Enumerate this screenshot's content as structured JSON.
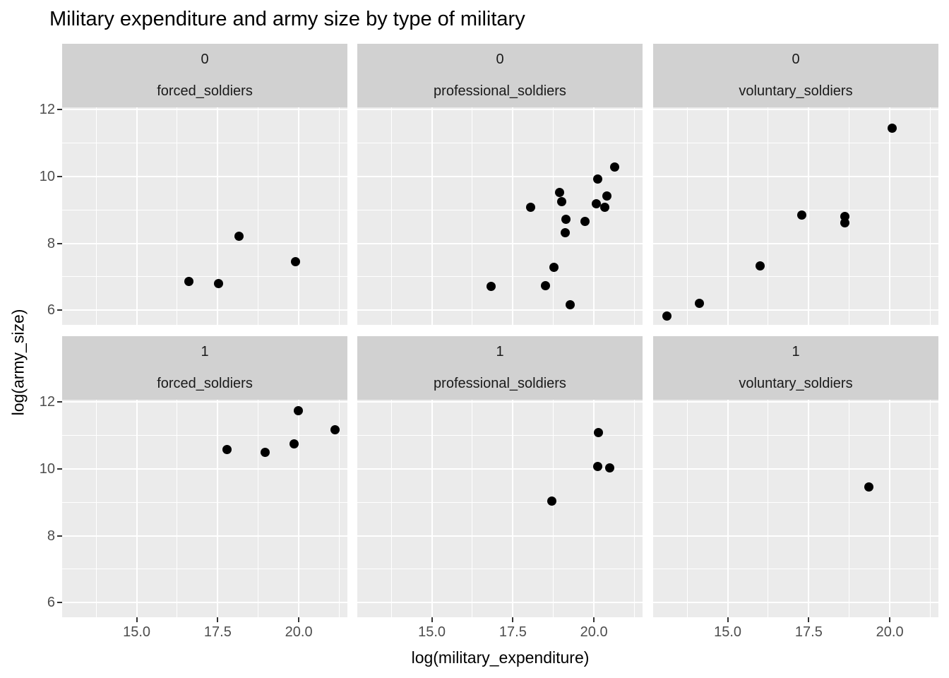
{
  "title": "Military expenditure and army size by type of military",
  "chart_data": {
    "type": "scatter",
    "title": "Military expenditure and army size by type of military",
    "xlabel": "log(military_expenditure)",
    "ylabel": "log(army_size)",
    "facet_rows": [
      "0",
      "1"
    ],
    "facet_cols": [
      "forced_soldiers",
      "professional_soldiers",
      "voluntary_soldiers"
    ],
    "xlim": [
      12.7,
      21.5
    ],
    "ylim": [
      5.56,
      12.07
    ],
    "x_ticks": [
      15.0,
      17.5,
      20.0
    ],
    "x_tick_labels": [
      "15.0",
      "17.5",
      "20.0"
    ],
    "y_ticks": [
      6,
      8,
      10,
      12
    ],
    "y_tick_labels": [
      "6",
      "8",
      "10",
      "12"
    ],
    "x_minor_ticks": [
      13.75,
      16.25,
      18.75,
      21.25
    ],
    "y_minor_ticks": [
      7,
      9,
      11
    ],
    "grid": true,
    "legend": "none",
    "panels": [
      {
        "row": "0",
        "col": "forced_soldiers",
        "points": [
          [
            16.61,
            6.87
          ],
          [
            17.52,
            6.8
          ],
          [
            18.15,
            8.22
          ],
          [
            19.89,
            7.46
          ]
        ]
      },
      {
        "row": "0",
        "col": "professional_soldiers",
        "points": [
          [
            16.83,
            6.72
          ],
          [
            18.04,
            9.08
          ],
          [
            18.5,
            6.74
          ],
          [
            18.76,
            7.29
          ],
          [
            18.94,
            9.53
          ],
          [
            19.01,
            9.24
          ],
          [
            19.12,
            8.32
          ],
          [
            19.13,
            8.73
          ],
          [
            19.26,
            6.17
          ],
          [
            19.72,
            8.66
          ],
          [
            20.07,
            9.18
          ],
          [
            20.11,
            9.93
          ],
          [
            20.33,
            9.08
          ],
          [
            20.4,
            9.42
          ],
          [
            20.63,
            10.29
          ]
        ]
      },
      {
        "row": "0",
        "col": "voluntary_soldiers",
        "points": [
          [
            13.13,
            5.83
          ],
          [
            14.13,
            6.21
          ],
          [
            16.0,
            7.33
          ],
          [
            17.28,
            8.85
          ],
          [
            18.61,
            8.81
          ],
          [
            18.61,
            8.62
          ],
          [
            20.07,
            11.45
          ]
        ]
      },
      {
        "row": "1",
        "col": "forced_soldiers",
        "points": [
          [
            17.78,
            10.59
          ],
          [
            18.96,
            10.49
          ],
          [
            19.85,
            10.74
          ],
          [
            19.98,
            11.75
          ],
          [
            21.11,
            11.18
          ]
        ]
      },
      {
        "row": "1",
        "col": "professional_soldiers",
        "points": [
          [
            18.7,
            9.03
          ],
          [
            20.11,
            10.08
          ],
          [
            20.13,
            11.08
          ],
          [
            20.48,
            10.02
          ]
        ]
      },
      {
        "row": "1",
        "col": "voluntary_soldiers",
        "points": [
          [
            19.35,
            9.45
          ]
        ]
      }
    ],
    "style": {
      "background": "#FFFFFF",
      "panel_bg": "#EBEBEB",
      "strip_bg": "#D1D1D1",
      "grid_color": "#FFFFFF",
      "point_color": "#000000",
      "tick_color": "#333333",
      "axis_text_color": "#4D4D4D",
      "title_color": "#000000"
    }
  }
}
